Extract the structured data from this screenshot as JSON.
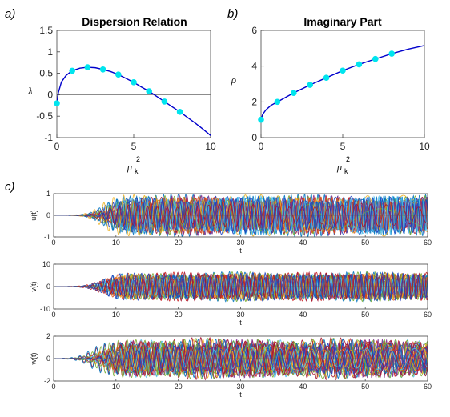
{
  "chart_data": [
    {
      "panel_label": "a)",
      "type": "line",
      "title": "Dispersion Relation",
      "xlabel": "μ",
      "xlabel_sup": "2",
      "xlabel_sub": "k",
      "ylabel": "λ",
      "xlim": [
        0,
        10
      ],
      "ylim": [
        -1,
        1.5
      ],
      "xticks": [
        "0",
        "5",
        "10"
      ],
      "yticks": [
        "-1",
        "-0.5",
        "0",
        "0.5",
        "1",
        "1.5"
      ],
      "zero_line": true,
      "curve": {
        "x": [
          0,
          0.1,
          0.3,
          0.6,
          1,
          1.5,
          2,
          2.5,
          3,
          3.5,
          4,
          4.5,
          5,
          5.5,
          6,
          6.5,
          7,
          7.5,
          8,
          8.5,
          9,
          9.5,
          10
        ],
        "y": [
          -0.2,
          0.05,
          0.3,
          0.45,
          0.56,
          0.62,
          0.64,
          0.63,
          0.59,
          0.54,
          0.47,
          0.38,
          0.29,
          0.18,
          0.08,
          -0.04,
          -0.16,
          -0.28,
          -0.4,
          -0.53,
          -0.66,
          -0.8,
          -0.95
        ],
        "color": "#0000cc"
      },
      "points": {
        "x": [
          0,
          1,
          2,
          3,
          4,
          5,
          6,
          7,
          8
        ],
        "y": [
          -0.2,
          0.56,
          0.64,
          0.59,
          0.47,
          0.29,
          0.08,
          -0.16,
          -0.4
        ],
        "color": "#00e5ee"
      }
    },
    {
      "panel_label": "b)",
      "type": "line",
      "title": "Imaginary Part",
      "xlabel": "μ",
      "xlabel_sup": "2",
      "xlabel_sub": "k",
      "ylabel": "ρ",
      "xlim": [
        0,
        10
      ],
      "ylim": [
        0,
        6
      ],
      "xticks": [
        "0",
        "5",
        "10"
      ],
      "yticks": [
        "0",
        "2",
        "4",
        "6"
      ],
      "curve": {
        "x": [
          0,
          0.1,
          0.3,
          0.6,
          1,
          1.5,
          2,
          3,
          4,
          5,
          6,
          7,
          8,
          9,
          10
        ],
        "y": [
          1.0,
          1.3,
          1.55,
          1.8,
          2.0,
          2.25,
          2.5,
          2.95,
          3.35,
          3.75,
          4.1,
          4.4,
          4.7,
          4.95,
          5.15
        ],
        "color": "#0000cc"
      },
      "points": {
        "x": [
          0,
          1,
          2,
          3,
          4,
          5,
          6,
          7,
          8
        ],
        "y": [
          1.0,
          2.0,
          2.5,
          2.95,
          3.35,
          3.75,
          4.1,
          4.4,
          4.7
        ],
        "color": "#00e5ee"
      }
    },
    {
      "panel_label": "c)",
      "type": "line",
      "ylabel": "u(t)",
      "xlabel": "t",
      "xlim": [
        0,
        60
      ],
      "ylim": [
        -1,
        1
      ],
      "xticks": [
        "0",
        "10",
        "20",
        "30",
        "40",
        "50",
        "60"
      ],
      "yticks": [
        "-1",
        "0",
        "1"
      ],
      "amplitude": 0.95,
      "onset": 9
    },
    {
      "type": "line",
      "ylabel": "v(t)",
      "xlabel": "t",
      "xlim": [
        0,
        60
      ],
      "ylim": [
        -10,
        10
      ],
      "xticks": [
        "0",
        "10",
        "20",
        "30",
        "40",
        "50",
        "60"
      ],
      "yticks": [
        "-10",
        "0",
        "10"
      ],
      "amplitude": 6.5,
      "onset": 9
    },
    {
      "type": "line",
      "ylabel": "w(t)",
      "xlabel": "t",
      "xlim": [
        0,
        60
      ],
      "ylim": [
        -2,
        2
      ],
      "xticks": [
        "0",
        "10",
        "20",
        "30",
        "40",
        "50",
        "60"
      ],
      "yticks": [
        "-2",
        "0",
        "2"
      ],
      "amplitude": 1.8,
      "onset": 8
    }
  ],
  "series_colors": [
    "#0072bd",
    "#d95319",
    "#edb120",
    "#7e2f8e",
    "#77ac30",
    "#4dbeee",
    "#a2142f",
    "#1f3fbf",
    "#cc2222"
  ]
}
